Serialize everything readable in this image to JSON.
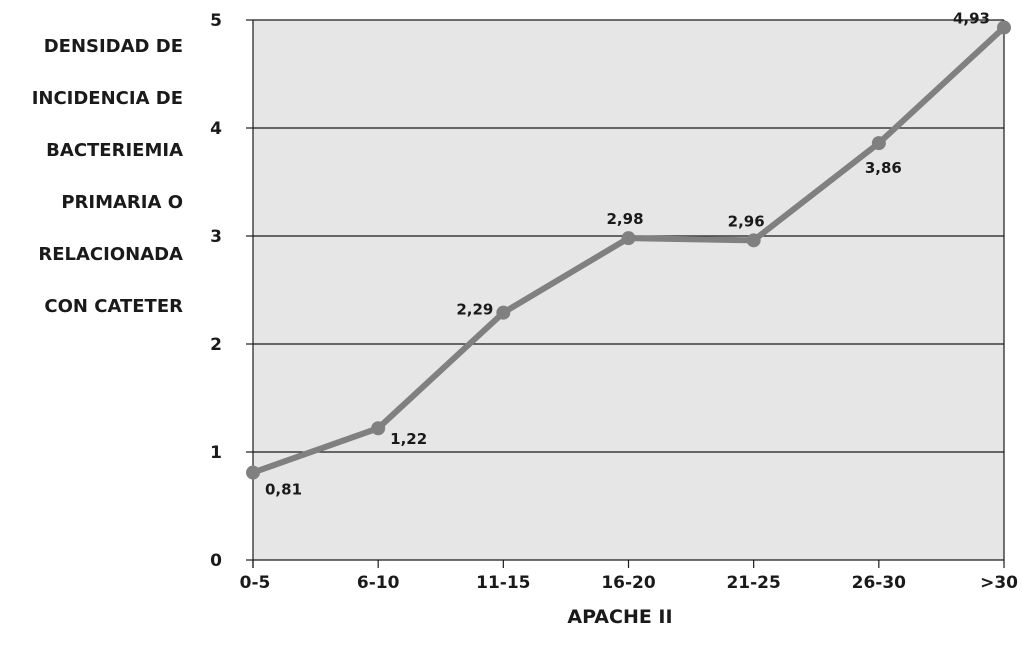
{
  "chart_data": {
    "type": "line",
    "ylabel_lines": [
      "DENSIDAD DE",
      "INCIDENCIA DE",
      "BACTERIEMIA",
      "PRIMARIA O",
      "RELACIONADA",
      "CON CATETER"
    ],
    "xlabel": "APACHE II",
    "categories": [
      "0-5",
      "6-10",
      "11-15",
      "16-20",
      "21-25",
      "26-30",
      ">30"
    ],
    "values": [
      0.81,
      1.22,
      2.29,
      2.98,
      2.96,
      3.86,
      4.93
    ],
    "value_labels": [
      "0,81",
      "1,22",
      "2,29",
      "2,98",
      "2,96",
      "3,86",
      "4,93"
    ],
    "yticks": [
      0,
      1,
      2,
      3,
      4,
      5
    ],
    "ylim": [
      0,
      5
    ],
    "grid": true,
    "colors": {
      "line": "#808080",
      "marker": "#808080",
      "plot_background": "#e6e6e6",
      "grid": "#1a1a1a"
    }
  }
}
